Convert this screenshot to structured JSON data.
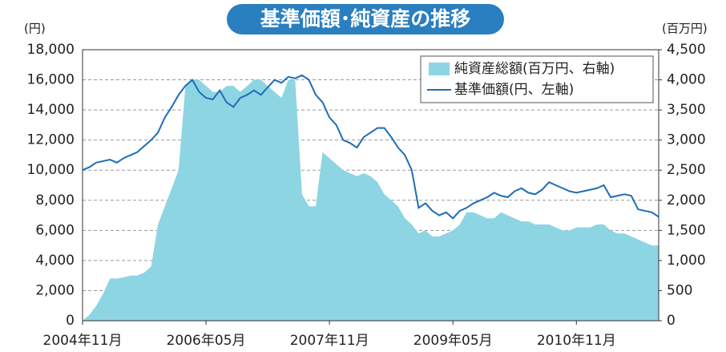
{
  "chart_data": {
    "type": "area_line",
    "title": "基準価額･純資産の推移",
    "y_axis_label": "(円)",
    "y2_axis_label": "(百万円)",
    "categories": [
      "2004年11月",
      null,
      null,
      null,
      null,
      null,
      null,
      null,
      null,
      null,
      null,
      null,
      null,
      null,
      null,
      null,
      null,
      null,
      "2006年05月",
      null,
      null,
      null,
      null,
      null,
      null,
      null,
      null,
      null,
      null,
      null,
      null,
      null,
      null,
      null,
      null,
      null,
      "2007年11月",
      null,
      null,
      null,
      null,
      null,
      null,
      null,
      null,
      null,
      null,
      null,
      null,
      null,
      null,
      null,
      null,
      null,
      "2009年05月",
      null,
      null,
      null,
      null,
      null,
      null,
      null,
      null,
      null,
      null,
      null,
      null,
      null,
      null,
      null,
      null,
      null,
      "2010年11月",
      null,
      null,
      null,
      null,
      null,
      null,
      null,
      null,
      null,
      null,
      null,
      null
    ],
    "series": [
      {
        "name": "純資産総額(百万円、右軸)",
        "type": "area",
        "axis": "y2",
        "color": "#8ed5e3",
        "values": [
          0,
          100,
          250,
          450,
          700,
          700,
          720,
          750,
          750,
          800,
          900,
          1600,
          1900,
          2200,
          2500,
          3900,
          4000,
          4000,
          3900,
          3800,
          3800,
          3900,
          3900,
          3800,
          3900,
          4000,
          4000,
          3900,
          3800,
          3700,
          4000,
          4000,
          2100,
          1900,
          1900,
          2800,
          2700,
          2600,
          2500,
          2450,
          2400,
          2450,
          2400,
          2300,
          2100,
          2000,
          1900,
          1700,
          1600,
          1450,
          1500,
          1400,
          1400,
          1450,
          1500,
          1600,
          1800,
          1800,
          1750,
          1700,
          1700,
          1800,
          1750,
          1700,
          1650,
          1650,
          1600,
          1600,
          1600,
          1550,
          1500,
          1500,
          1550,
          1550,
          1550,
          1600,
          1600,
          1500,
          1450,
          1450,
          1400,
          1350,
          1300,
          1250,
          1250
        ]
      },
      {
        "name": "基準価額(円、左軸)",
        "type": "line",
        "axis": "y",
        "color": "#1f6db5",
        "values": [
          10000,
          10200,
          10500,
          10600,
          10700,
          10500,
          10800,
          11000,
          11200,
          11600,
          12000,
          12500,
          13500,
          14200,
          15000,
          15600,
          16000,
          15200,
          14800,
          14700,
          15300,
          14500,
          14200,
          14800,
          15000,
          15300,
          15000,
          15500,
          16000,
          15800,
          16200,
          16100,
          16300,
          16000,
          15000,
          14500,
          13500,
          13000,
          12000,
          11800,
          11500,
          12200,
          12500,
          12800,
          12800,
          12200,
          11500,
          11000,
          10000,
          7500,
          7800,
          7300,
          7000,
          7200,
          6800,
          7300,
          7500,
          7800,
          8000,
          8200,
          8500,
          8300,
          8200,
          8600,
          8800,
          8500,
          8400,
          8700,
          9200,
          9000,
          8800,
          8600,
          8500,
          8600,
          8700,
          8800,
          9000,
          8200,
          8300,
          8400,
          8300,
          7400,
          7300,
          7200,
          6900
        ]
      }
    ],
    "ylim": [
      0,
      18000
    ],
    "yticks": [
      0,
      {
        "value": 2000,
        "label": "2,000"
      },
      {
        "value": 4000,
        "label": "4,000"
      },
      {
        "value": 6000,
        "label": "6,000"
      },
      {
        "value": 8000,
        "label": "8,000"
      },
      {
        "value": 10000,
        "label": "10,000"
      },
      {
        "value": 12000,
        "label": "12,000"
      },
      {
        "value": 14000,
        "label": "14,000"
      },
      {
        "value": 16000,
        "label": "16,000"
      },
      {
        "value": 18000,
        "label": "18,000"
      }
    ],
    "y2lim": [
      0,
      4500
    ],
    "y2ticks": [
      0,
      500,
      {
        "value": 1000,
        "label": "1,000"
      },
      {
        "value": 1500,
        "label": "1,500"
      },
      {
        "value": 2000,
        "label": "2,000"
      },
      {
        "value": 2500,
        "label": "2,500"
      },
      {
        "value": 3000,
        "label": "3,000"
      },
      {
        "value": 3500,
        "label": "3,500"
      },
      {
        "value": 4000,
        "label": "4,000"
      },
      {
        "value": 4500,
        "label": "4,500"
      }
    ],
    "grid": true,
    "legend": "upper right"
  }
}
